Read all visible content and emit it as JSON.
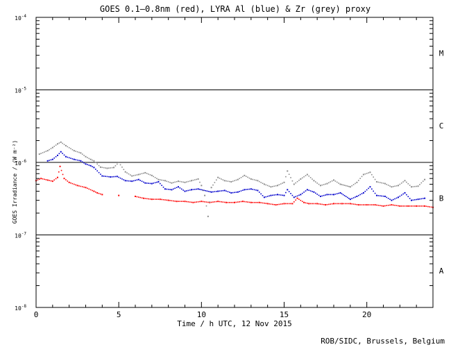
{
  "chart_data": {
    "type": "scatter",
    "title": "GOES 0.1–0.8nm (red), LYRA Al (blue) & Zr (grey) proxy",
    "xlabel": "Time / h UTC, 12 Nov 2015",
    "ylabel": "GOES Irradiance / (W m⁻²)",
    "xlim": [
      0,
      24
    ],
    "ylim": [
      1e-08,
      0.0001
    ],
    "yscale": "log",
    "x_ticks": [
      0,
      5,
      10,
      15,
      20
    ],
    "y_ticks": [
      {
        "value": 1e-08,
        "base": "10",
        "exp": "-8"
      },
      {
        "value": 1e-07,
        "base": "10",
        "exp": "-7"
      },
      {
        "value": 1e-06,
        "base": "10",
        "exp": "-6"
      },
      {
        "value": 1e-05,
        "base": "10",
        "exp": "-5"
      },
      {
        "value": 0.0001,
        "base": "10",
        "exp": "-4"
      }
    ],
    "class_lines": [
      1e-07,
      1e-06,
      1e-05
    ],
    "flare_classes": [
      {
        "label": "A",
        "value": 3.2e-08
      },
      {
        "label": "B",
        "value": 3.2e-07
      },
      {
        "label": "C",
        "value": 3.2e-06
      },
      {
        "label": "M",
        "value": 3.2e-05
      }
    ],
    "series": [
      {
        "color": "#ff0000",
        "x": [
          0,
          0.3,
          0.7,
          1.0,
          1.3,
          1.45,
          1.7,
          2.0,
          2.5,
          3.0,
          3.5,
          3.7,
          4.0,
          5.0,
          6.0,
          6.5,
          7.0,
          7.5,
          8.0,
          8.5,
          9.0,
          9.5,
          10.0,
          10.5,
          11.0,
          11.5,
          12.0,
          12.5,
          13.0,
          13.5,
          14.0,
          14.5,
          15.0,
          15.5,
          15.8,
          16.2,
          16.5,
          17.0,
          17.5,
          18.0,
          18.5,
          19.0,
          19.5,
          20.0,
          20.5,
          21.0,
          21.5,
          22.0,
          22.5,
          23.0,
          23.5,
          24.0
        ],
        "y": [
          5.6e-07,
          6e-07,
          5.7e-07,
          5.5e-07,
          6.2e-07,
          8.8e-07,
          6e-07,
          5.3e-07,
          4.8e-07,
          4.5e-07,
          4e-07,
          3.8e-07,
          3.6e-07,
          3.5e-07,
          3.4e-07,
          3.2e-07,
          3.1e-07,
          3.1e-07,
          3e-07,
          2.9e-07,
          2.9e-07,
          2.8e-07,
          2.9e-07,
          2.8e-07,
          2.9e-07,
          2.8e-07,
          2.8e-07,
          2.9e-07,
          2.8e-07,
          2.8e-07,
          2.7e-07,
          2.6e-07,
          2.7e-07,
          2.7e-07,
          3.2e-07,
          2.8e-07,
          2.7e-07,
          2.7e-07,
          2.6e-07,
          2.7e-07,
          2.7e-07,
          2.7e-07,
          2.6e-07,
          2.6e-07,
          2.6e-07,
          2.5e-07,
          2.6e-07,
          2.5e-07,
          2.5e-07,
          2.5e-07,
          2.5e-07,
          2.4e-07
        ]
      },
      {
        "color": "#0000cc",
        "x": [
          0.7,
          1.0,
          1.3,
          1.5,
          1.8,
          2.3,
          2.7,
          3.0,
          3.3,
          3.5,
          4.0,
          4.5,
          4.9,
          5.4,
          5.8,
          6.2,
          6.6,
          7.0,
          7.4,
          7.8,
          8.2,
          8.6,
          9.0,
          9.4,
          9.8,
          10.6,
          11.0,
          11.4,
          11.8,
          12.2,
          12.6,
          13.0,
          13.4,
          13.8,
          14.2,
          14.6,
          15.0,
          15.2,
          15.6,
          16.0,
          16.4,
          16.8,
          17.2,
          17.6,
          18.0,
          18.4,
          19.0,
          19.4,
          19.8,
          20.2,
          20.6,
          21.1,
          21.5,
          21.9,
          22.3,
          22.7,
          23.1,
          23.5
        ],
        "y": [
          1.05e-06,
          1.1e-06,
          1.25e-06,
          1.4e-06,
          1.2e-06,
          1.1e-06,
          1.05e-06,
          9.5e-07,
          9e-07,
          8.5e-07,
          6.5e-07,
          6.3e-07,
          6.4e-07,
          5.6e-07,
          5.5e-07,
          5.8e-07,
          5.2e-07,
          5.1e-07,
          5.4e-07,
          4.3e-07,
          4.2e-07,
          4.6e-07,
          4e-07,
          4.2e-07,
          4.3e-07,
          3.9e-07,
          4e-07,
          4.1e-07,
          3.8e-07,
          3.9e-07,
          4.2e-07,
          4.3e-07,
          4.1e-07,
          3.3e-07,
          3.5e-07,
          3.6e-07,
          3.5e-07,
          4.2e-07,
          3.3e-07,
          3.6e-07,
          4.2e-07,
          3.9e-07,
          3.4e-07,
          3.6e-07,
          3.6e-07,
          3.8e-07,
          3.1e-07,
          3.4e-07,
          3.8e-07,
          4.6e-07,
          3.5e-07,
          3.4e-07,
          3e-07,
          3.3e-07,
          3.8e-07,
          3e-07,
          3.1e-07,
          3.2e-07
        ]
      },
      {
        "color": "#8c8c8c",
        "x": [
          0.2,
          0.7,
          1.0,
          1.3,
          1.5,
          1.8,
          2.3,
          2.7,
          3.0,
          3.3,
          3.5,
          3.9,
          4.3,
          4.7,
          5.0,
          5.4,
          5.8,
          6.2,
          6.6,
          7.0,
          7.4,
          7.8,
          8.2,
          8.6,
          9.0,
          9.4,
          9.8,
          10.0,
          10.2,
          10.4,
          10.6,
          11.0,
          11.4,
          11.8,
          12.2,
          12.6,
          13.0,
          13.4,
          13.8,
          14.2,
          14.6,
          15.0,
          15.2,
          15.6,
          16.0,
          16.4,
          16.8,
          17.2,
          17.6,
          18.0,
          18.4,
          19.0,
          19.4,
          19.8,
          20.2,
          20.6,
          21.1,
          21.5,
          21.9,
          22.3,
          22.7,
          23.1,
          23.5
        ],
        "y": [
          1.3e-06,
          1.45e-06,
          1.6e-06,
          1.8e-06,
          1.9e-06,
          1.7e-06,
          1.45e-06,
          1.35e-06,
          1.2e-06,
          1.1e-06,
          1.05e-06,
          8.6e-07,
          8.3e-07,
          8.5e-07,
          1e-06,
          7.4e-07,
          6.5e-07,
          6.8e-07,
          7.2e-07,
          6.6e-07,
          5.8e-07,
          5.6e-07,
          5.2e-07,
          5.5e-07,
          5.3e-07,
          5.6e-07,
          5.9e-07,
          4.8e-07,
          3.5e-07,
          1.8e-07,
          4.5e-07,
          6.2e-07,
          5.6e-07,
          5.4e-07,
          5.8e-07,
          6.6e-07,
          5.9e-07,
          5.6e-07,
          5e-07,
          4.6e-07,
          4.8e-07,
          5.3e-07,
          7.6e-07,
          5e-07,
          5.9e-07,
          6.8e-07,
          5.6e-07,
          4.8e-07,
          5.1e-07,
          5.7e-07,
          5e-07,
          4.6e-07,
          5.3e-07,
          6.8e-07,
          7.3e-07,
          5.4e-07,
          5.1e-07,
          4.6e-07,
          4.8e-07,
          5.6e-07,
          4.6e-07,
          4.7e-07,
          5.8e-07
        ]
      }
    ]
  },
  "credit": "ROB/SIDC, Brussels, Belgium"
}
